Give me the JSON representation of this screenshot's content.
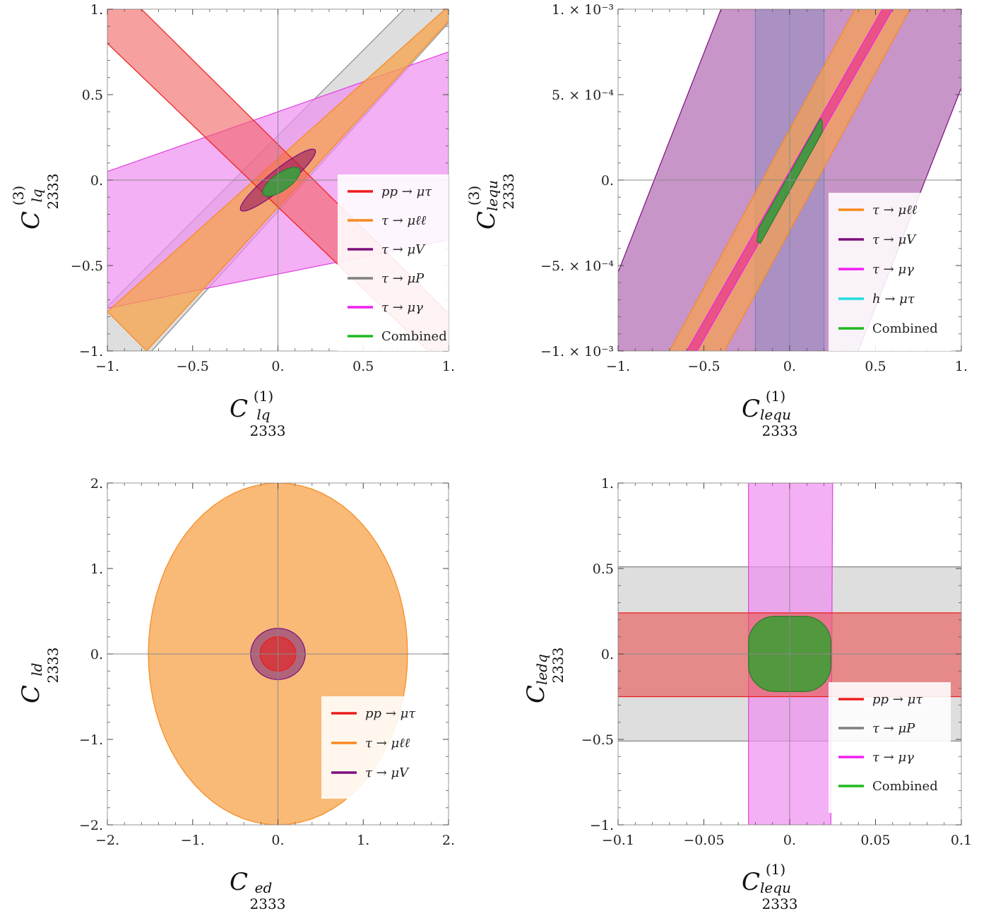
{
  "chart_data": [
    {
      "type": "area",
      "panel": "top-left",
      "xlabel": {
        "main": "C",
        "sub": "lq",
        "sup": "(1)",
        "index": "2333"
      },
      "ylabel": {
        "main": "C",
        "sub": "lq",
        "sup": "(3)",
        "index": "2333"
      },
      "xlim": [
        -1,
        1
      ],
      "ylim": [
        -1,
        1
      ],
      "xticks": [
        -1,
        -0.5,
        0,
        0.5,
        1
      ],
      "yticks": [
        -1,
        -0.5,
        0,
        0.5,
        1
      ],
      "xtick_labels": [
        "−1.",
        "−0.5",
        "0.",
        "0.5",
        "1."
      ],
      "ytick_labels": [
        "−1.",
        "−0.5",
        "0.",
        "0.5",
        "1."
      ],
      "grid": "zero-lines",
      "legend_position": "bottom-right",
      "legend": [
        {
          "label": "pp → μτ",
          "color": "#ee1c1c"
        },
        {
          "label": "τ → μℓℓ",
          "color": "#f7891e"
        },
        {
          "label": "τ → μV",
          "color": "#7d0e7d"
        },
        {
          "label": "τ → μP",
          "color": "#808080"
        },
        {
          "label": "τ → μγ",
          "color": "#f21ff2"
        },
        {
          "label": "Combined",
          "color": "#1fb81f"
        }
      ],
      "regions": [
        {
          "series": "τ → μP",
          "shape": "polygon",
          "fill": "#c8c8c8",
          "stroke": "#888888",
          "opacity": 0.6,
          "points": [
            [
              -1,
              -0.74
            ],
            [
              0.74,
              1
            ],
            [
              1,
              1
            ],
            [
              1,
              0.92
            ],
            [
              -0.74,
              -1
            ],
            [
              -1,
              -1
            ]
          ]
        },
        {
          "series": "τ → μγ",
          "shape": "polygon",
          "fill": "#f08ff0",
          "stroke": "#e040e0",
          "opacity": 0.7,
          "points": [
            [
              -1,
              0.05
            ],
            [
              1,
              0.75
            ],
            [
              1,
              -0.35
            ],
            [
              -1,
              -0.75
            ]
          ]
        },
        {
          "series": "τ → μℓℓ",
          "shape": "polygon",
          "fill": "#f7a14a",
          "stroke": "#f7891e",
          "opacity": 0.75,
          "points": [
            [
              -1,
              -0.77
            ],
            [
              -0.77,
              -1
            ],
            [
              1,
              0.93
            ],
            [
              1,
              1
            ],
            [
              0.98,
              1
            ]
          ]
        },
        {
          "series": "pp → μτ",
          "shape": "polygon",
          "fill": "#f26060",
          "stroke": "#ee1c1c",
          "opacity": 0.6,
          "points": [
            [
              -1,
              1
            ],
            [
              -0.8,
              1
            ],
            [
              1,
              -0.78
            ],
            [
              1,
              -1
            ],
            [
              0.88,
              -1
            ],
            [
              -1,
              0.8
            ]
          ]
        },
        {
          "series": "τ → μV",
          "shape": "ellipse",
          "fill": "#9c1f5c",
          "stroke": "#7d0e7d",
          "opacity": 0.65,
          "cx": 0.0,
          "cy": 0.0,
          "rx": 0.28,
          "ry": 0.055,
          "angle_deg": 39
        },
        {
          "series": "Combined",
          "shape": "ellipse",
          "fill": "#3f9a3f",
          "stroke": "#2a7a2a",
          "opacity": 0.95,
          "cx": 0.02,
          "cy": -0.01,
          "rx": 0.13,
          "ry": 0.05,
          "angle_deg": 35
        }
      ]
    },
    {
      "type": "area",
      "panel": "top-right",
      "xlabel": {
        "main": "C",
        "sub": "lequ",
        "sup": "(1)",
        "index": "2333"
      },
      "ylabel": {
        "main": "C",
        "sub": "lequ",
        "sup": "(3)",
        "index": "2333"
      },
      "xlim": [
        -1,
        1
      ],
      "ylim": [
        -0.001,
        0.001
      ],
      "xticks": [
        -1,
        -0.5,
        0,
        0.5,
        1
      ],
      "yticks": [
        -0.001,
        -0.0005,
        0,
        0.0005,
        0.001
      ],
      "xtick_labels": [
        "−1.",
        "−0.5",
        "0.",
        "0.5",
        "1."
      ],
      "ytick_labels": [
        "−1. × 10⁻³",
        "−5. × 10⁻⁴",
        "0.",
        "5. × 10⁻⁴",
        "1. × 10⁻³"
      ],
      "grid": "zero-lines",
      "legend_position": "bottom-right",
      "legend": [
        {
          "label": "τ → μℓℓ",
          "color": "#f7891e"
        },
        {
          "label": "τ → μV",
          "color": "#7d0e7d"
        },
        {
          "label": "τ → μγ",
          "color": "#f21ff2"
        },
        {
          "label": "h → μτ",
          "color": "#1fdede"
        },
        {
          "label": "Combined",
          "color": "#1fb81f"
        }
      ],
      "regions": [
        {
          "series": "h → μτ",
          "shape": "polygon",
          "fill": "#8cecec",
          "stroke": "#40d0d0",
          "opacity": 0.65,
          "points": [
            [
              -0.2,
              -0.001
            ],
            [
              -0.2,
              0.001
            ],
            [
              0.2,
              0.001
            ],
            [
              0.2,
              -0.001
            ]
          ]
        },
        {
          "series": "τ → μV",
          "shape": "polygon",
          "fill": "#a34fa3",
          "stroke": "#7d0e7d",
          "opacity": 0.6,
          "points": [
            [
              -1,
              -0.00054
            ],
            [
              -0.4,
              0.001
            ],
            [
              1,
              0.001
            ],
            [
              1,
              0.00054
            ],
            [
              0.4,
              -0.001
            ],
            [
              -1,
              -0.001
            ]
          ]
        },
        {
          "series": "τ → μℓℓ",
          "shape": "polygon",
          "fill": "#f7a14a",
          "stroke": "#f7891e",
          "opacity": 0.7,
          "points": [
            [
              -0.7,
              -0.001
            ],
            [
              0.38,
              0.001
            ],
            [
              0.7,
              0.001
            ],
            [
              -0.38,
              -0.001
            ]
          ]
        },
        {
          "series": "τ → μγ",
          "shape": "polygon",
          "fill": "#e83a8c",
          "stroke": "#f21ff2",
          "opacity": 0.75,
          "points": [
            [
              -0.6,
              -0.001
            ],
            [
              0.54,
              0.001
            ],
            [
              0.6,
              0.001
            ],
            [
              -0.54,
              -0.001
            ]
          ]
        },
        {
          "series": "Combined",
          "shape": "polygon",
          "fill": "#3f9a3f",
          "stroke": "#2a7a2a",
          "opacity": 0.95,
          "points": [
            [
              -0.19,
              -0.00036
            ],
            [
              -0.18,
              -0.00028
            ],
            [
              0.18,
              0.00036
            ],
            [
              0.19,
              0.00034
            ],
            [
              0.19,
              0.00028
            ],
            [
              -0.17,
              -0.00037
            ]
          ]
        }
      ]
    },
    {
      "type": "area",
      "panel": "bottom-left",
      "xlabel": {
        "main": "C",
        "sub": "ed",
        "sup": "",
        "index": "2333"
      },
      "ylabel": {
        "main": "C",
        "sub": "ld",
        "sup": "",
        "index": "2333"
      },
      "xlim": [
        -2,
        2
      ],
      "ylim": [
        -2,
        2
      ],
      "xticks": [
        -2,
        -1,
        0,
        1,
        2
      ],
      "yticks": [
        -2,
        -1,
        0,
        1,
        2
      ],
      "xtick_labels": [
        "−2.",
        "−1.",
        "0.",
        "1.",
        "2."
      ],
      "ytick_labels": [
        "−2.",
        "−1.",
        "0.",
        "1.",
        "2."
      ],
      "grid": "zero-lines",
      "legend_position": "bottom-right",
      "legend": [
        {
          "label": "pp → μτ",
          "color": "#ee1c1c"
        },
        {
          "label": "τ → μℓℓ",
          "color": "#f7891e"
        },
        {
          "label": "τ → μV",
          "color": "#7d0e7d"
        }
      ],
      "regions": [
        {
          "series": "τ → μℓℓ",
          "shape": "ellipse",
          "fill": "#f7a14a",
          "stroke": "#f7891e",
          "opacity": 0.75,
          "cx": 0.0,
          "cy": 0.0,
          "rx": 1.52,
          "ry": 2.0,
          "angle_deg": 0
        },
        {
          "series": "τ → μV",
          "shape": "ellipse",
          "fill": "#9c4f7c",
          "stroke": "#7d0e7d",
          "opacity": 0.8,
          "cx": 0.0,
          "cy": 0.0,
          "rx": 0.32,
          "ry": 0.3,
          "angle_deg": 0
        },
        {
          "series": "pp → μτ",
          "shape": "ellipse",
          "fill": "#e02a2a",
          "stroke": "#ee1c1c",
          "opacity": 0.7,
          "cx": 0.0,
          "cy": 0.0,
          "rx": 0.21,
          "ry": 0.2,
          "angle_deg": 0
        }
      ]
    },
    {
      "type": "area",
      "panel": "bottom-right",
      "xlabel": {
        "main": "C",
        "sub": "lequ",
        "sup": "(1)",
        "index": "2333"
      },
      "ylabel": {
        "main": "C",
        "sub": "ledq",
        "sup": "",
        "index": "2333"
      },
      "xlim": [
        -0.1,
        0.1
      ],
      "ylim": [
        -1,
        1
      ],
      "xticks": [
        -0.1,
        -0.05,
        0,
        0.05,
        0.1
      ],
      "yticks": [
        -1,
        -0.5,
        0,
        0.5,
        1
      ],
      "xtick_labels": [
        "−0.1",
        "−0.05",
        "0.",
        "0.05",
        "0.1"
      ],
      "ytick_labels": [
        "−1.",
        "−0.5",
        "0.",
        "0.5",
        "1."
      ],
      "grid": "zero-lines",
      "legend_position": "bottom-right",
      "legend": [
        {
          "label": "pp → μτ",
          "color": "#ee1c1c"
        },
        {
          "label": "τ → μP",
          "color": "#808080"
        },
        {
          "label": "τ → μγ",
          "color": "#f21ff2"
        },
        {
          "label": "Combined",
          "color": "#1fb81f"
        }
      ],
      "regions": [
        {
          "series": "τ → μP",
          "shape": "polygon",
          "fill": "#c8c8c8",
          "stroke": "#888888",
          "opacity": 0.6,
          "points": [
            [
              -0.1,
              -0.51
            ],
            [
              -0.1,
              0.51
            ],
            [
              0.1,
              0.51
            ],
            [
              0.1,
              -0.51
            ]
          ]
        },
        {
          "series": "τ → μγ",
          "shape": "polygon",
          "fill": "#f08ff0",
          "stroke": "#e040e0",
          "opacity": 0.7,
          "points": [
            [
              -0.024,
              -1
            ],
            [
              -0.024,
              1
            ],
            [
              0.025,
              1
            ],
            [
              0.024,
              -1
            ]
          ]
        },
        {
          "series": "pp → μτ",
          "shape": "polygon",
          "fill": "#e85a5a",
          "stroke": "#ee1c1c",
          "opacity": 0.65,
          "points": [
            [
              -0.1,
              -0.25
            ],
            [
              -0.1,
              0.24
            ],
            [
              0.1,
              0.24
            ],
            [
              0.1,
              -0.25
            ]
          ]
        },
        {
          "series": "Combined",
          "shape": "roundrect",
          "fill": "#4a9a3a",
          "stroke": "#2a7a2a",
          "opacity": 0.95,
          "x0": -0.024,
          "x1": 0.024,
          "y0": -0.22,
          "y1": 0.22,
          "corner": 0.35
        }
      ]
    }
  ]
}
